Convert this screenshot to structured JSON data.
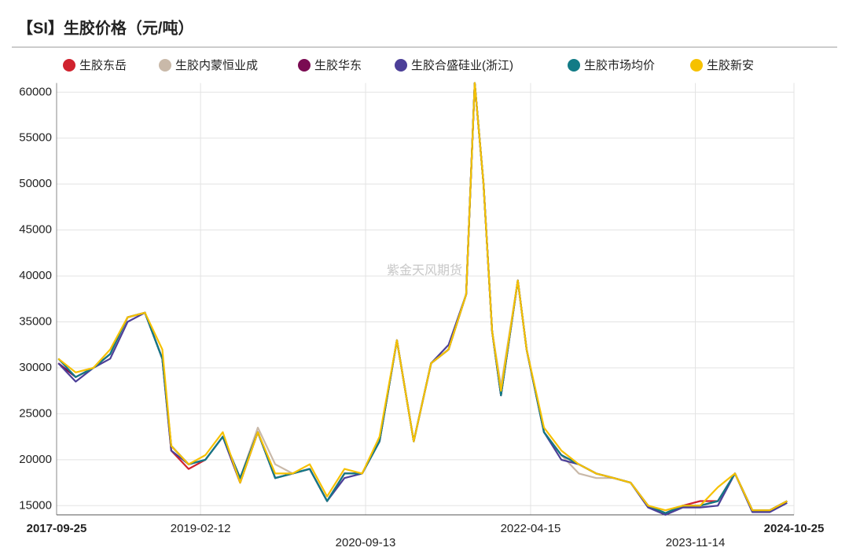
{
  "chart_data": {
    "type": "line",
    "title": "【SI】生胶价格（元/吨）",
    "watermark": "紫金天风期货",
    "x": [
      "2017-10-01",
      "2017-12-01",
      "2018-02-01",
      "2018-04-01",
      "2018-06-01",
      "2018-08-01",
      "2018-10-01",
      "2018-11-01",
      "2019-01-01",
      "2019-03-01",
      "2019-05-01",
      "2019-07-01",
      "2019-09-01",
      "2019-11-01",
      "2020-01-01",
      "2020-03-01",
      "2020-05-01",
      "2020-07-01",
      "2020-09-01",
      "2020-11-01",
      "2021-01-01",
      "2021-03-01",
      "2021-05-01",
      "2021-07-01",
      "2021-09-01",
      "2021-10-01",
      "2021-11-01",
      "2021-12-01",
      "2022-01-01",
      "2022-03-01",
      "2022-04-01",
      "2022-06-01",
      "2022-08-01",
      "2022-10-01",
      "2022-12-01",
      "2023-02-01",
      "2023-04-01",
      "2023-06-01",
      "2023-08-01",
      "2023-10-01",
      "2023-12-01",
      "2024-02-01",
      "2024-04-01",
      "2024-06-01",
      "2024-08-01",
      "2024-10-01"
    ],
    "series": [
      {
        "name": "生胶东岳",
        "color": "#d0222e",
        "values": [
          30500,
          29000,
          30000,
          31500,
          35500,
          36000,
          31000,
          21000,
          19000,
          20000,
          22500,
          17500,
          23000,
          18000,
          18500,
          19000,
          15500,
          18500,
          18500,
          22000,
          33000,
          22000,
          30500,
          32000,
          38000,
          61000,
          50000,
          34000,
          27000,
          39500,
          32000,
          23000,
          20500,
          19500,
          18500,
          18000,
          17500,
          15000,
          14200,
          15000,
          15500,
          15500,
          18500,
          14500,
          14500,
          15500
        ]
      },
      {
        "name": "生胶内蒙恒业成",
        "color": "#c9b9a9",
        "values": [
          31000,
          29000,
          30000,
          31500,
          35500,
          36000,
          31000,
          21500,
          19500,
          20000,
          22500,
          18000,
          23500,
          19500,
          18500,
          19000,
          15500,
          18500,
          18500,
          22000,
          33000,
          22000,
          30500,
          32000,
          38000,
          61000,
          50000,
          34000,
          28000,
          39500,
          32000,
          23000,
          20500,
          18500,
          18000,
          18000,
          17500,
          15000,
          14200,
          15000,
          15000,
          15500,
          18500,
          14500,
          14500,
          15500
        ]
      },
      {
        "name": "生胶华东",
        "color": "#7a0b52",
        "values": [
          30500,
          29000,
          30000,
          31500,
          35500,
          36000,
          31000,
          21500,
          19500,
          20000,
          22500,
          18000,
          23000,
          18000,
          18500,
          19000,
          15500,
          18500,
          18500,
          22000,
          33000,
          22000,
          30500,
          32000,
          38000,
          61000,
          50000,
          34000,
          27000,
          39500,
          32000,
          23000,
          20500,
          19500,
          18500,
          18000,
          17500,
          15000,
          14200,
          15000,
          15000,
          15500,
          18500,
          14500,
          14500,
          15500
        ]
      },
      {
        "name": "生胶合盛硅业(浙江)",
        "color": "#4c3f98",
        "values": [
          30500,
          28500,
          30000,
          31000,
          35000,
          36000,
          31000,
          21000,
          19500,
          20000,
          22500,
          17500,
          23000,
          18000,
          18500,
          19000,
          15500,
          18000,
          18500,
          22000,
          33000,
          22000,
          30500,
          32500,
          38000,
          61000,
          50000,
          34000,
          27000,
          39500,
          32000,
          23000,
          20000,
          19500,
          18500,
          18000,
          17500,
          14800,
          14000,
          14800,
          14800,
          15000,
          18500,
          14300,
          14300,
          15300
        ]
      },
      {
        "name": "生胶市场均价",
        "color": "#127b86",
        "values": [
          31000,
          29000,
          30000,
          31500,
          35500,
          36000,
          31000,
          21500,
          19500,
          20000,
          22500,
          18000,
          23000,
          18000,
          18500,
          19000,
          15500,
          18500,
          18500,
          22000,
          33000,
          22000,
          30500,
          32000,
          38000,
          61000,
          50000,
          34000,
          27000,
          39500,
          32000,
          23000,
          20500,
          19500,
          18500,
          18000,
          17500,
          15000,
          14200,
          15000,
          15000,
          15500,
          18500,
          14500,
          14500,
          15500
        ]
      },
      {
        "name": "生胶新安",
        "color": "#f6c100",
        "values": [
          31000,
          29500,
          30000,
          32000,
          35500,
          36000,
          32000,
          21500,
          19500,
          20500,
          23000,
          17500,
          23000,
          18500,
          18500,
          19500,
          16000,
          19000,
          18500,
          22500,
          33000,
          22000,
          30500,
          32000,
          38000,
          61000,
          50000,
          34000,
          27500,
          39500,
          32000,
          23500,
          21000,
          19500,
          18500,
          18000,
          17500,
          15000,
          14500,
          15000,
          15000,
          17000,
          18500,
          14500,
          14500,
          15500
        ]
      }
    ],
    "xlim": [
      "2017-09-25",
      "2024-10-25"
    ],
    "xticks": [
      "2017-09-25",
      "2019-02-12",
      "2020-09-13",
      "2022-04-15",
      "2023-11-14",
      "2024-10-25"
    ],
    "ylim": [
      14000,
      61000
    ],
    "yticks": [
      15000,
      20000,
      25000,
      30000,
      35000,
      40000,
      45000,
      50000,
      55000,
      60000
    ],
    "grid": true
  }
}
